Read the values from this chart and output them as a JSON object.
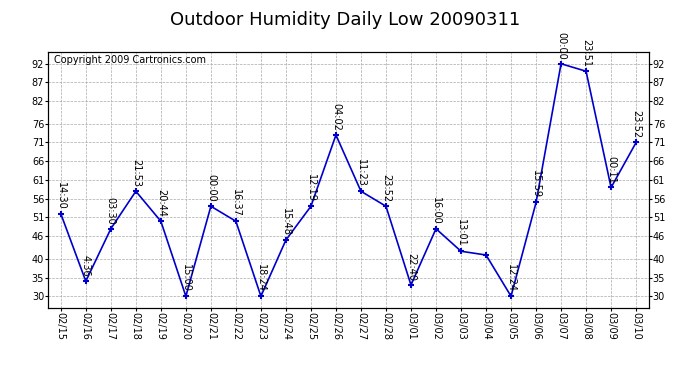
{
  "title": "Outdoor Humidity Daily Low 20090311",
  "copyright": "Copyright 2009 Cartronics.com",
  "x_labels": [
    "02/15",
    "02/16",
    "02/17",
    "02/18",
    "02/19",
    "02/20",
    "02/21",
    "02/22",
    "02/23",
    "02/24",
    "02/25",
    "02/26",
    "02/27",
    "02/28",
    "03/01",
    "03/02",
    "03/03",
    "03/04",
    "03/05",
    "03/06",
    "03/07",
    "03/08",
    "03/09",
    "03/10"
  ],
  "y_values": [
    52,
    34,
    48,
    58,
    50,
    30,
    54,
    50,
    30,
    45,
    54,
    73,
    58,
    54,
    33,
    48,
    42,
    41,
    30,
    55,
    92,
    90,
    59,
    71
  ],
  "point_labels": [
    "14:30",
    "4:36",
    "03:30",
    "21:53",
    "20:44",
    "15:00",
    "00:00",
    "16:37",
    "18:24",
    "15:48",
    "12:19",
    "04:02",
    "11:23",
    "23:52",
    "22:40",
    "16:00",
    "13:01",
    "",
    "12:24",
    "15:59",
    "00:00",
    "23:51",
    "00:11",
    "23:52"
  ],
  "ylim": [
    27,
    95
  ],
  "yticks": [
    30,
    35,
    40,
    46,
    51,
    56,
    61,
    66,
    71,
    76,
    82,
    87,
    92
  ],
  "line_color": "#0000cc",
  "marker_color": "#0000cc",
  "grid_color": "#aaaaaa",
  "bg_color": "#ffffff",
  "title_fontsize": 13,
  "label_fontsize": 7,
  "copyright_fontsize": 7
}
